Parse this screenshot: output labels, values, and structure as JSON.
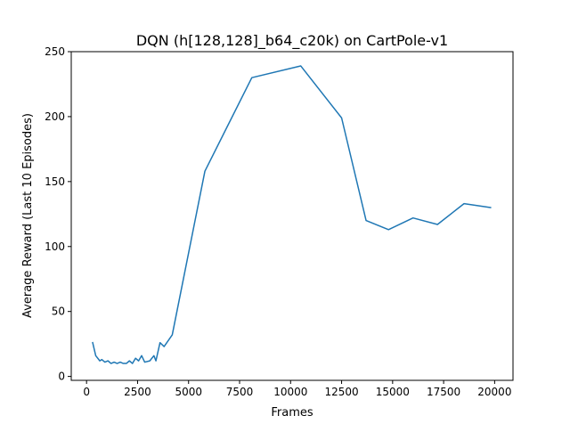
{
  "chart_data": {
    "type": "line",
    "title": "DQN (h[128,128]_b64_c20k) on CartPole-v1",
    "xlabel": "Frames",
    "ylabel": "Average Reward (Last 10 Episodes)",
    "xlim": [
      -750,
      20900
    ],
    "ylim": [
      -3,
      250
    ],
    "xticks": [
      0,
      2500,
      5000,
      7500,
      10000,
      12500,
      15000,
      17500,
      20000
    ],
    "yticks": [
      0,
      50,
      100,
      150,
      200,
      250
    ],
    "grid": false,
    "legend": "none",
    "series": [
      {
        "color": "#1f77b4",
        "x": [
          300,
          450,
          650,
          750,
          900,
          1050,
          1200,
          1350,
          1500,
          1650,
          1800,
          1950,
          2100,
          2250,
          2400,
          2550,
          2700,
          2850,
          3100,
          3300,
          3400,
          3600,
          3800,
          4200,
          5800,
          8100,
          10500,
          12500,
          13700,
          14800,
          16000,
          17200,
          18500,
          19800
        ],
        "y": [
          26,
          16,
          12,
          13,
          11,
          12,
          10,
          11,
          10,
          11,
          10,
          10,
          12,
          10,
          14,
          12,
          16,
          11,
          12,
          16,
          12,
          26,
          23,
          32,
          158,
          230,
          239,
          199,
          120,
          113,
          122,
          117,
          133,
          130
        ]
      }
    ]
  }
}
